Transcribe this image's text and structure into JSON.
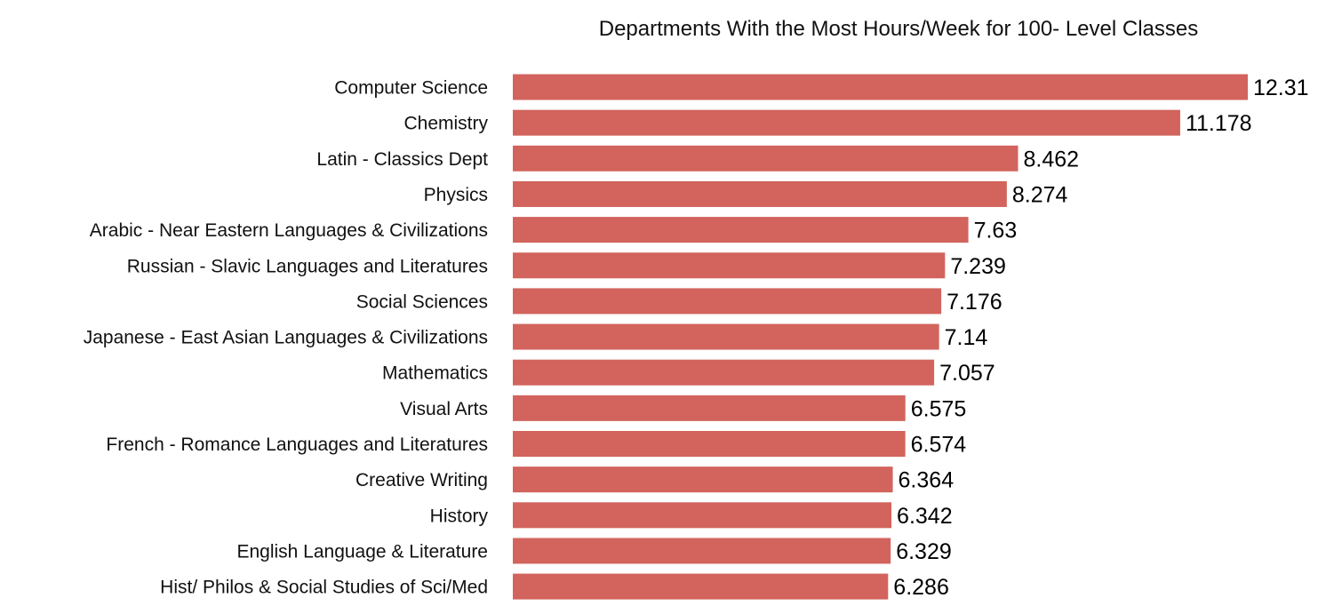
{
  "colors": {
    "bar": "#d2645d",
    "text": "#111111",
    "background": "#ffffff"
  },
  "chart_data": {
    "type": "bar",
    "orientation": "horizontal",
    "title": "Departments With the Most Hours/Week for 100- Level Classes",
    "xlabel": "",
    "ylabel": "",
    "xlim": [
      0,
      12.31
    ],
    "grid": false,
    "legend": "none",
    "categories": [
      "Computer Science",
      "Chemistry",
      "Latin - Classics  Dept",
      "Physics",
      "Arabic - Near Eastern Languages & Civilizations",
      "Russian - Slavic Languages and Literatures",
      "Social Sciences",
      "Japanese - East Asian Languages & Civilizations",
      "Mathematics",
      "Visual Arts",
      "French - Romance Languages and Literatures",
      "Creative Writing",
      "History",
      "English Language & Literature",
      "Hist/ Philos & Social Studies of Sci/Med"
    ],
    "values": [
      12.31,
      11.178,
      8.462,
      8.274,
      7.63,
      7.239,
      7.176,
      7.14,
      7.057,
      6.575,
      6.574,
      6.364,
      6.342,
      6.329,
      6.286
    ],
    "data_labels": [
      "12.31",
      "11.178",
      "8.462",
      "8.274",
      "7.63",
      "7.239",
      "7.176",
      "7.14",
      "7.057",
      "6.575",
      "6.574",
      "6.364",
      "6.342",
      "6.329",
      "6.286"
    ]
  }
}
